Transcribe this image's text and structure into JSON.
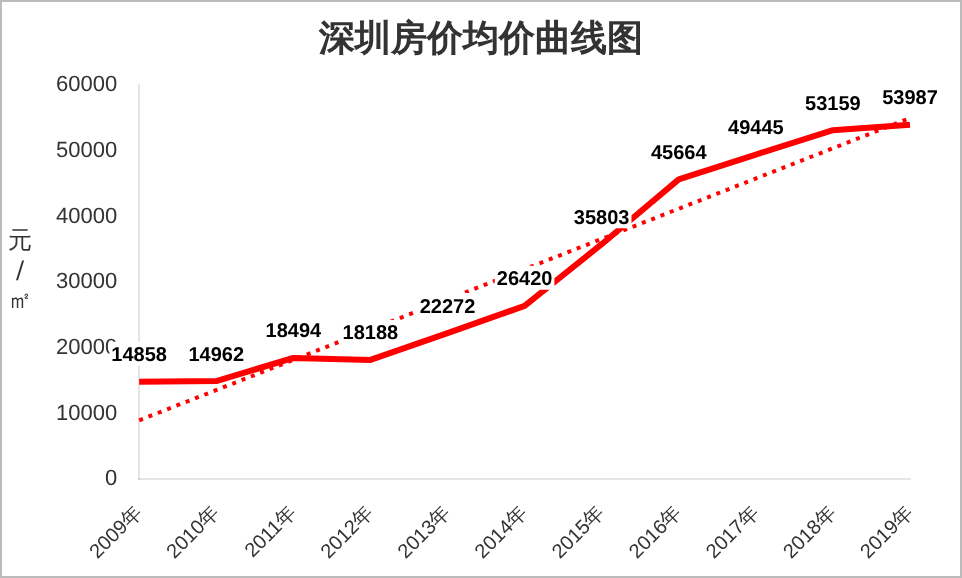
{
  "chart_data": {
    "type": "line",
    "title": "深圳房价均价曲线图",
    "ylabel": "元/㎡",
    "categories": [
      "2009年",
      "2010年",
      "2011年",
      "2012年",
      "2013年",
      "2014年",
      "2015年",
      "2016年",
      "2017年",
      "2018年",
      "2019年"
    ],
    "series": [
      {
        "color": "#ff0000",
        "values": [
          14858,
          14962,
          18494,
          18188,
          22272,
          26420,
          35803,
          45664,
          49445,
          53159,
          53987
        ],
        "data_labels": true,
        "line_style": "solid"
      },
      {
        "type": "line",
        "color": "#ff0000",
        "x": [
          "2009年",
          "2019年"
        ],
        "values": [
          9000,
          55000
        ],
        "line_style": "dotted"
      }
    ],
    "ylim": [
      0,
      60000
    ],
    "yticks": [
      0,
      10000,
      20000,
      30000,
      40000,
      50000,
      60000
    ],
    "grid": false,
    "legend": false,
    "marker": "none"
  }
}
